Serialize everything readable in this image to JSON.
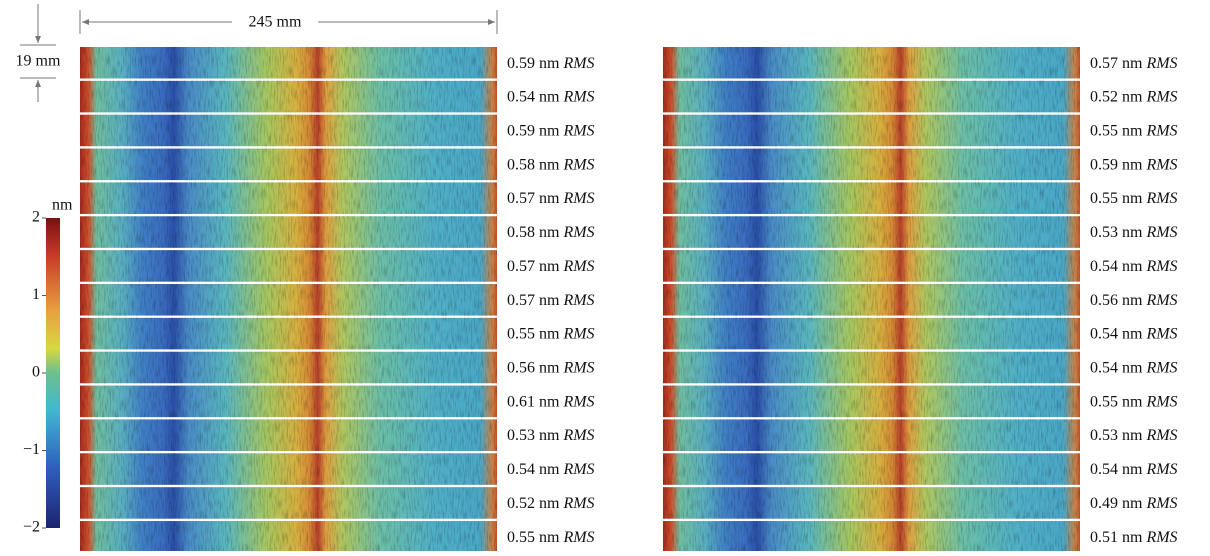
{
  "figure": {
    "length_label": "245 mm",
    "width_label": "19 mm",
    "colorbar": {
      "unit": "nm",
      "ticks": [
        {
          "value": 2,
          "label": "2"
        },
        {
          "value": 1,
          "label": "1"
        },
        {
          "value": 0,
          "label": "0"
        },
        {
          "value": -1,
          "label": "−1"
        },
        {
          "value": -2,
          "label": "−2"
        }
      ]
    },
    "rms_label": "RMS",
    "panels": [
      {
        "rows": [
          "0.59 nm",
          "0.54 nm",
          "0.59 nm",
          "0.58 nm",
          "0.57 nm",
          "0.58 nm",
          "0.57 nm",
          "0.57 nm",
          "0.55 nm",
          "0.56 nm",
          "0.61 nm",
          "0.53 nm",
          "0.54 nm",
          "0.52 nm",
          "0.55 nm"
        ]
      },
      {
        "rows": [
          "0.57 nm",
          "0.52 nm",
          "0.55 nm",
          "0.59 nm",
          "0.55 nm",
          "0.53 nm",
          "0.54 nm",
          "0.56 nm",
          "0.54 nm",
          "0.54 nm",
          "0.55 nm",
          "0.53 nm",
          "0.54 nm",
          "0.49 nm",
          "0.51 nm"
        ]
      }
    ]
  }
}
